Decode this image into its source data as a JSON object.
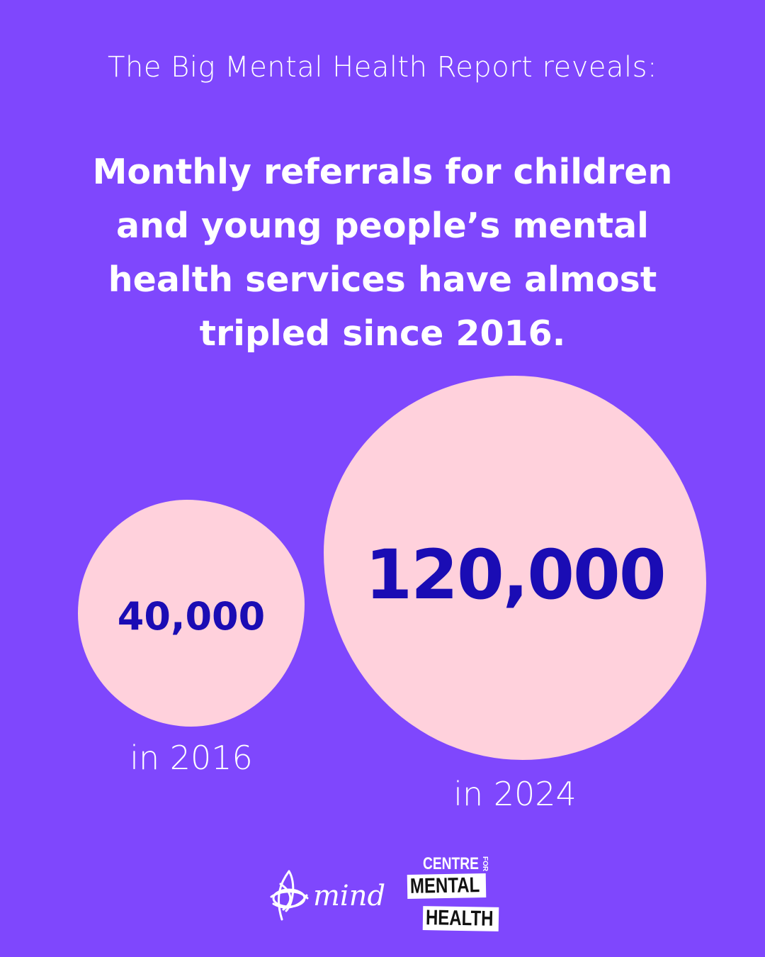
{
  "intro": "The Big Mental Health Report reveals:",
  "headline": "Monthly referrals for children and young people’s mental health services have almost tripled since 2016.",
  "stats": [
    {
      "value": "40,000",
      "year_label": "in 2016"
    },
    {
      "value": "120,000",
      "year_label": "in 2024"
    }
  ],
  "logos": {
    "mind": "mind",
    "cmh_centre": "CENTRE",
    "cmh_for": "FOR",
    "cmh_mental": "MENTAL",
    "cmh_health": "HEALTH"
  },
  "colors": {
    "background": "#7f47fd",
    "bubble": "#ffd1dc",
    "number": "#1a0cb4"
  }
}
